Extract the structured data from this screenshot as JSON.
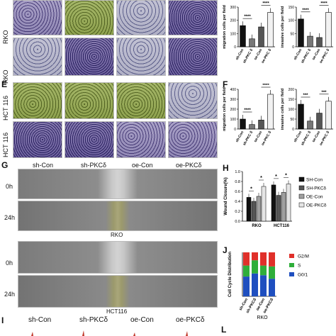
{
  "panels": {
    "D": {
      "row_labels": [
        "RKO",
        "RKO"
      ]
    },
    "E": {
      "letter": "E",
      "row_labels": [
        "HCT 116",
        "HCT 116"
      ]
    },
    "F": {
      "letter": "F"
    },
    "G": {
      "letter": "G",
      "columns": [
        "sh-Con",
        "sh-PKCδ",
        "oe-Con",
        "oe-PKCδ"
      ],
      "row_labels": [
        "0h",
        "24h",
        "0h",
        "24h"
      ],
      "captions": [
        "RKO",
        "HCT116"
      ]
    },
    "H": {
      "letter": "H"
    },
    "I": {
      "letter": "I",
      "columns": [
        "sh-Con",
        "sh-PKCδ",
        "oe-Con",
        "oe-PKCδ"
      ]
    },
    "J": {
      "letter": "J"
    },
    "L": {
      "letter": "L"
    }
  },
  "chart_data": [
    {
      "id": "D-migration",
      "type": "bar",
      "categories": [
        "sh-Con",
        "sh-PKC δ",
        "oe-Con",
        "oe-PKC δ"
      ],
      "values": [
        160,
        60,
        150,
        260
      ],
      "ylabel": "migration cells per field",
      "ylim": [
        0,
        300
      ],
      "yticks": [
        "0",
        "100",
        "200",
        "300"
      ],
      "significance": [
        "****",
        "****"
      ]
    },
    {
      "id": "D-invasive",
      "type": "bar",
      "categories": [
        "sh-Con",
        "sh-PKC δ",
        "oe-Con",
        "oe-PKC δ"
      ],
      "values": [
        105,
        40,
        35,
        130
      ],
      "ylabel": "invasive cells per field",
      "ylim": [
        0,
        150
      ],
      "yticks": [
        "0",
        "50",
        "100",
        "150"
      ],
      "significance": [
        "****",
        "****"
      ]
    },
    {
      "id": "F-migration",
      "type": "bar",
      "categories": [
        "sh-Con",
        "sh-PKC δ",
        "oe-Con",
        "oe-PKC δ"
      ],
      "values": [
        100,
        45,
        90,
        350
      ],
      "ylabel": "migration cells per field",
      "ylim": [
        0,
        400
      ],
      "yticks": [
        "0",
        "100",
        "200",
        "300",
        "400"
      ],
      "significance": [
        "****",
        "****"
      ]
    },
    {
      "id": "F-invasive",
      "type": "bar",
      "categories": [
        "sh-Con",
        "sh-PKC δ",
        "oe-Con",
        "oe-PKC δ"
      ],
      "values": [
        125,
        40,
        80,
        140
      ],
      "ylabel": "invasive cells per field",
      "ylim": [
        0,
        200
      ],
      "yticks": [
        "0",
        "50",
        "100",
        "150",
        "200"
      ],
      "significance": [
        "***",
        "***"
      ]
    },
    {
      "id": "H-wound",
      "type": "bar",
      "categories": [
        "RKO",
        "HCT116"
      ],
      "series": [
        {
          "name": "SH-Con",
          "values": [
            0.48,
            0.73
          ],
          "color": "#111111"
        },
        {
          "name": "SH-PKCδ",
          "values": [
            0.4,
            0.52
          ],
          "color": "#555555"
        },
        {
          "name": "OE-Con",
          "values": [
            0.5,
            0.58
          ],
          "color": "#a0a0a0"
        },
        {
          "name": "OE-PKCδ",
          "values": [
            0.7,
            0.75
          ],
          "color": "#e5e5e5"
        }
      ],
      "ylabel": "Wound Closure(%)",
      "ylim": [
        0,
        1.0
      ],
      "yticks": [
        "0.0",
        "0.2",
        "0.4",
        "0.6",
        "0.8",
        "1.0"
      ],
      "significance": [
        "*",
        "*",
        "*",
        "*"
      ],
      "legend_position": "right"
    },
    {
      "id": "J-cellcycle",
      "type": "bar",
      "categories": [
        "sh-Con",
        "sh-PKCδ",
        "oe-Con",
        "oe-PKCδ"
      ],
      "series": [
        {
          "name": "G0/1",
          "values": [
            45,
            52,
            48,
            40
          ],
          "color": "#1f4fbf"
        },
        {
          "name": "S",
          "values": [
            25,
            30,
            22,
            28
          ],
          "color": "#2fae3a"
        },
        {
          "name": "G2/M",
          "values": [
            30,
            18,
            30,
            32
          ],
          "color": "#e0302a"
        }
      ],
      "ylabel": "Cell Cycle Distribution",
      "ylim": [
        0,
        100
      ],
      "xlabel": "RKO",
      "legend_position": "right"
    }
  ]
}
